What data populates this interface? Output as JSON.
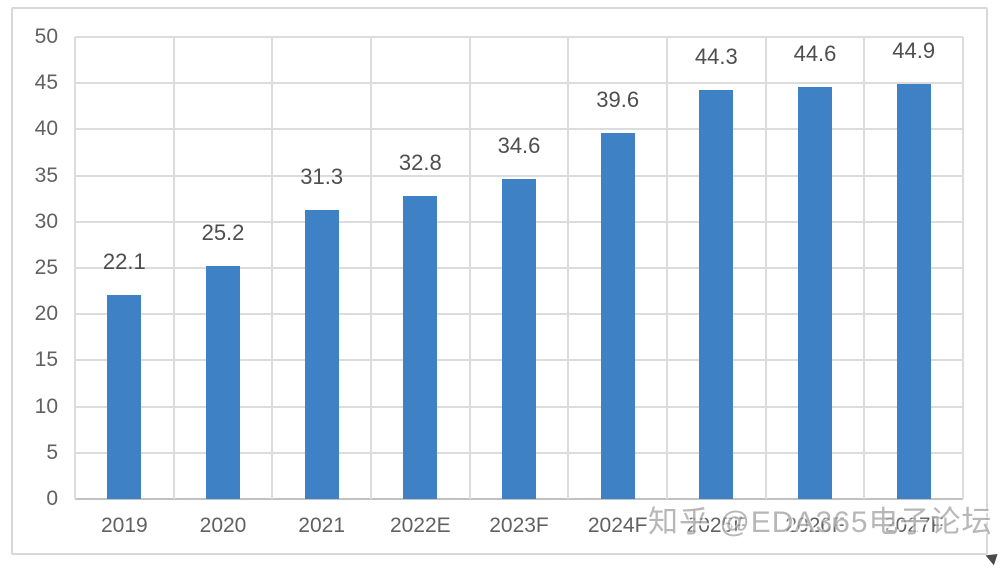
{
  "watermark": {
    "text": "知乎 @EDA365电子论坛"
  },
  "chart_data": {
    "type": "bar",
    "categories": [
      "2019",
      "2020",
      "2021",
      "2022E",
      "2023F",
      "2024F",
      "2025F",
      "2026F",
      "2027F"
    ],
    "values": [
      22.1,
      25.2,
      31.3,
      32.8,
      34.6,
      39.6,
      44.3,
      44.6,
      44.9
    ],
    "title": "",
    "xlabel": "",
    "ylabel": "",
    "ylim": [
      0,
      50
    ],
    "yticks": [
      0,
      5,
      10,
      15,
      20,
      25,
      30,
      35,
      40,
      45,
      50
    ],
    "grid": "both",
    "legend": "none",
    "data_labels": "outside-end",
    "bar_color": "#3E81C4",
    "gridline_color": "#DCDCDC",
    "axis_line_color": "#C2C2C2",
    "tick_label_color": "#616161",
    "data_label_color": "#4E4E4E"
  }
}
